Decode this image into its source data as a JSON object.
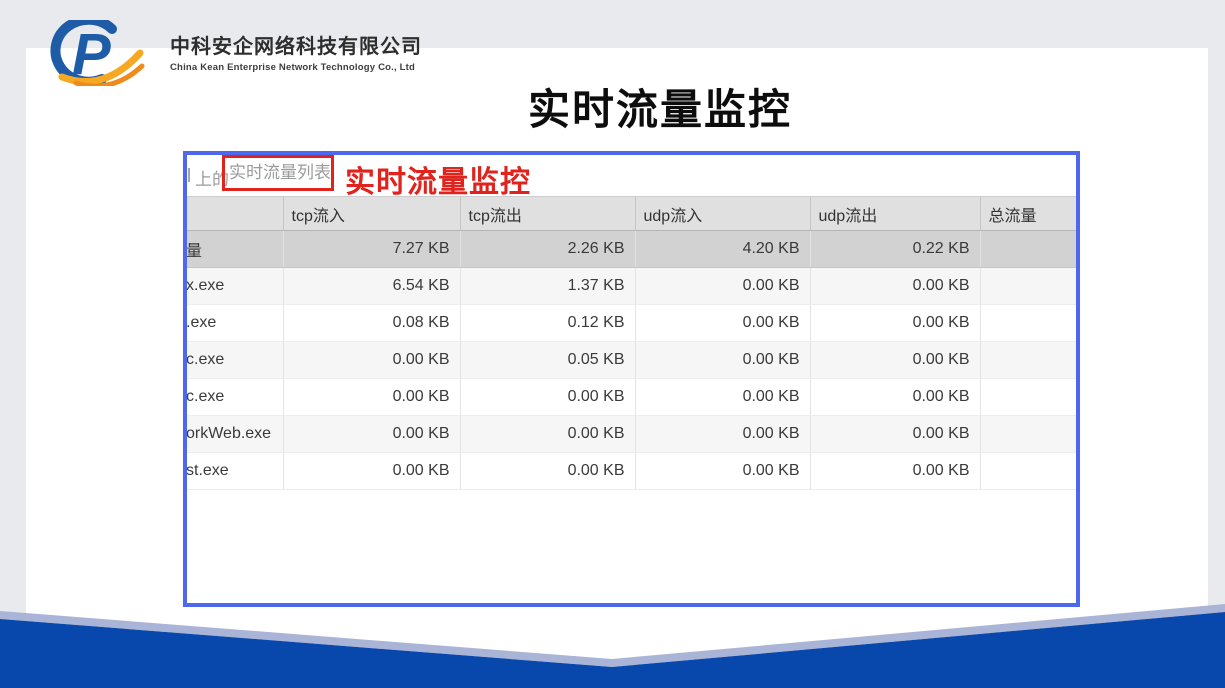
{
  "slide": {
    "title": "实时流量监控",
    "logo": {
      "company_cn": "中科安企网络科技有限公司",
      "company_en": "China Kean Enterprise Network Technology Co., Ltd"
    }
  },
  "screenshot": {
    "strip": {
      "prefix": "上的",
      "boxed_label": "实时流量列表",
      "annotation": "实时流量监控"
    },
    "table": {
      "headers": [
        "",
        "tcp流入",
        "tcp流出",
        "udp流入",
        "udp流出",
        "总流量"
      ],
      "rows": [
        {
          "name": "量",
          "values": [
            "7.27 KB",
            "2.26 KB",
            "4.20 KB",
            "0.22 KB",
            ""
          ],
          "selected": true
        },
        {
          "name": "x.exe",
          "values": [
            "6.54 KB",
            "1.37 KB",
            "0.00 KB",
            "0.00 KB",
            ""
          ],
          "selected": false
        },
        {
          "name": ".exe",
          "values": [
            "0.08 KB",
            "0.12 KB",
            "0.00 KB",
            "0.00 KB",
            ""
          ],
          "selected": false
        },
        {
          "name": "c.exe",
          "values": [
            "0.00 KB",
            "0.05 KB",
            "0.00 KB",
            "0.00 KB",
            ""
          ],
          "selected": false
        },
        {
          "name": "c.exe",
          "values": [
            "0.00 KB",
            "0.00 KB",
            "0.00 KB",
            "0.00 KB",
            ""
          ],
          "selected": false
        },
        {
          "name": "orkWeb.exe",
          "values": [
            "0.00 KB",
            "0.00 KB",
            "0.00 KB",
            "0.00 KB",
            ""
          ],
          "selected": false
        },
        {
          "name": "st.exe",
          "values": [
            "0.00 KB",
            "0.00 KB",
            "0.00 KB",
            "0.00 KB",
            ""
          ],
          "selected": false
        }
      ]
    }
  },
  "colors": {
    "accent_blue": "#4d68ee",
    "red": "#e0231c",
    "band_blue": "#0847ab",
    "band_stripe": "#a9b4d6",
    "logo_blue": "#1e5ca8",
    "logo_orange": "#f7a823"
  }
}
